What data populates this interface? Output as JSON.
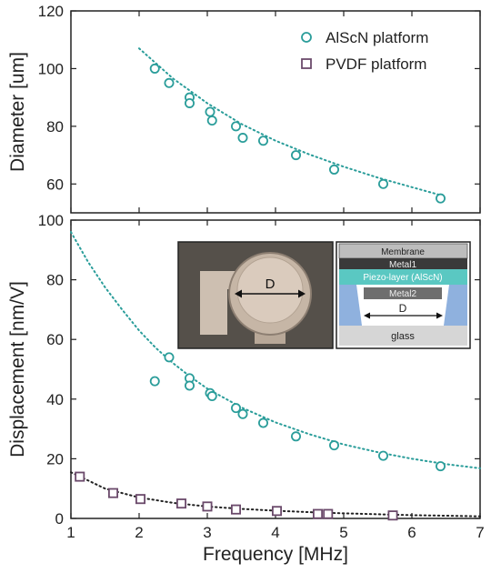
{
  "chart_data": [
    {
      "type": "scatter",
      "ylabel": "Diameter [um]",
      "xlim": [
        1,
        7
      ],
      "ylim": [
        50,
        120
      ],
      "yticks": [
        60,
        80,
        100,
        120
      ],
      "legend_position": "top-right",
      "series": [
        {
          "name": "AlScN platform",
          "color": "#2a9d9a",
          "marker": "circle",
          "points": [
            [
              2.23,
              100
            ],
            [
              2.44,
              95
            ],
            [
              2.74,
              90
            ],
            [
              2.74,
              88
            ],
            [
              3.04,
              85
            ],
            [
              3.07,
              82
            ],
            [
              3.42,
              80
            ],
            [
              3.52,
              76
            ],
            [
              3.82,
              75
            ],
            [
              4.3,
              70
            ],
            [
              4.86,
              65
            ],
            [
              5.58,
              60
            ],
            [
              6.42,
              55
            ]
          ],
          "fit": [
            [
              2.0,
              107
            ],
            [
              2.5,
              96.5
            ],
            [
              3.0,
              88
            ],
            [
              3.5,
              80.8
            ],
            [
              4.0,
              75
            ],
            [
              4.5,
              70.2
            ],
            [
              5.0,
              66
            ],
            [
              5.5,
              62.2
            ],
            [
              6.0,
              58.9
            ],
            [
              6.5,
              55.6
            ]
          ]
        },
        {
          "name": "PVDF platform",
          "color": "#6b4a6b",
          "marker": "square",
          "points": []
        }
      ]
    },
    {
      "type": "scatter",
      "ylabel": "Displacement [nm/V]",
      "xlabel": "Frequency [MHz]",
      "xlim": [
        1,
        7
      ],
      "ylim": [
        0,
        100
      ],
      "xticks": [
        1,
        2,
        3,
        4,
        5,
        6,
        7
      ],
      "yticks": [
        0,
        20,
        40,
        60,
        80,
        100
      ],
      "series": [
        {
          "name": "AlScN platform",
          "color": "#2a9d9a",
          "marker": "circle",
          "points": [
            [
              2.23,
              46
            ],
            [
              2.44,
              54
            ],
            [
              2.74,
              47
            ],
            [
              2.74,
              44.5
            ],
            [
              3.04,
              42
            ],
            [
              3.07,
              41
            ],
            [
              3.42,
              37
            ],
            [
              3.52,
              35
            ],
            [
              3.82,
              32
            ],
            [
              4.3,
              27.5
            ],
            [
              4.86,
              24.5
            ],
            [
              5.58,
              21
            ],
            [
              6.42,
              17.5
            ]
          ],
          "fit": [
            [
              1.0,
              96
            ],
            [
              1.25,
              86
            ],
            [
              1.5,
              77.5
            ],
            [
              1.75,
              70
            ],
            [
              2.0,
              63
            ],
            [
              2.25,
              57
            ],
            [
              2.5,
              52
            ],
            [
              2.75,
              47.5
            ],
            [
              3.0,
              43.5
            ],
            [
              3.5,
              37.2
            ],
            [
              4.0,
              32.2
            ],
            [
              4.5,
              28.2
            ],
            [
              5.0,
              24.8
            ],
            [
              5.5,
              22.2
            ],
            [
              6.0,
              20.0
            ],
            [
              6.5,
              18.2
            ],
            [
              7.0,
              16.8
            ]
          ]
        },
        {
          "name": "PVDF platform",
          "color": "#6b4a6b",
          "marker": "square",
          "points": [
            [
              1.13,
              14
            ],
            [
              1.62,
              8.5
            ],
            [
              2.02,
              6.5
            ],
            [
              2.62,
              5
            ],
            [
              3.0,
              4
            ],
            [
              3.42,
              3
            ],
            [
              4.02,
              2.5
            ],
            [
              4.62,
              1.5
            ],
            [
              4.77,
              1.5
            ],
            [
              5.72,
              1
            ]
          ],
          "fit": [
            [
              1.0,
              15.5
            ],
            [
              1.5,
              10
            ],
            [
              2.0,
              7
            ],
            [
              2.5,
              5.2
            ],
            [
              3.0,
              4.0
            ],
            [
              3.5,
              3.2
            ],
            [
              4.0,
              2.6
            ],
            [
              4.5,
              2.1
            ],
            [
              5.0,
              1.7
            ],
            [
              5.5,
              1.4
            ],
            [
              6.0,
              1.1
            ],
            [
              6.5,
              0.9
            ],
            [
              7.0,
              0.7
            ]
          ]
        }
      ]
    }
  ],
  "inset": {
    "photo_label": "D",
    "cross_section_labels": {
      "membrane": "Membrane",
      "metal1": "Metal1",
      "piezo": "Piezo-layer (AlScN)",
      "metal2": "Metal2",
      "d": "D",
      "glass": "glass"
    }
  }
}
